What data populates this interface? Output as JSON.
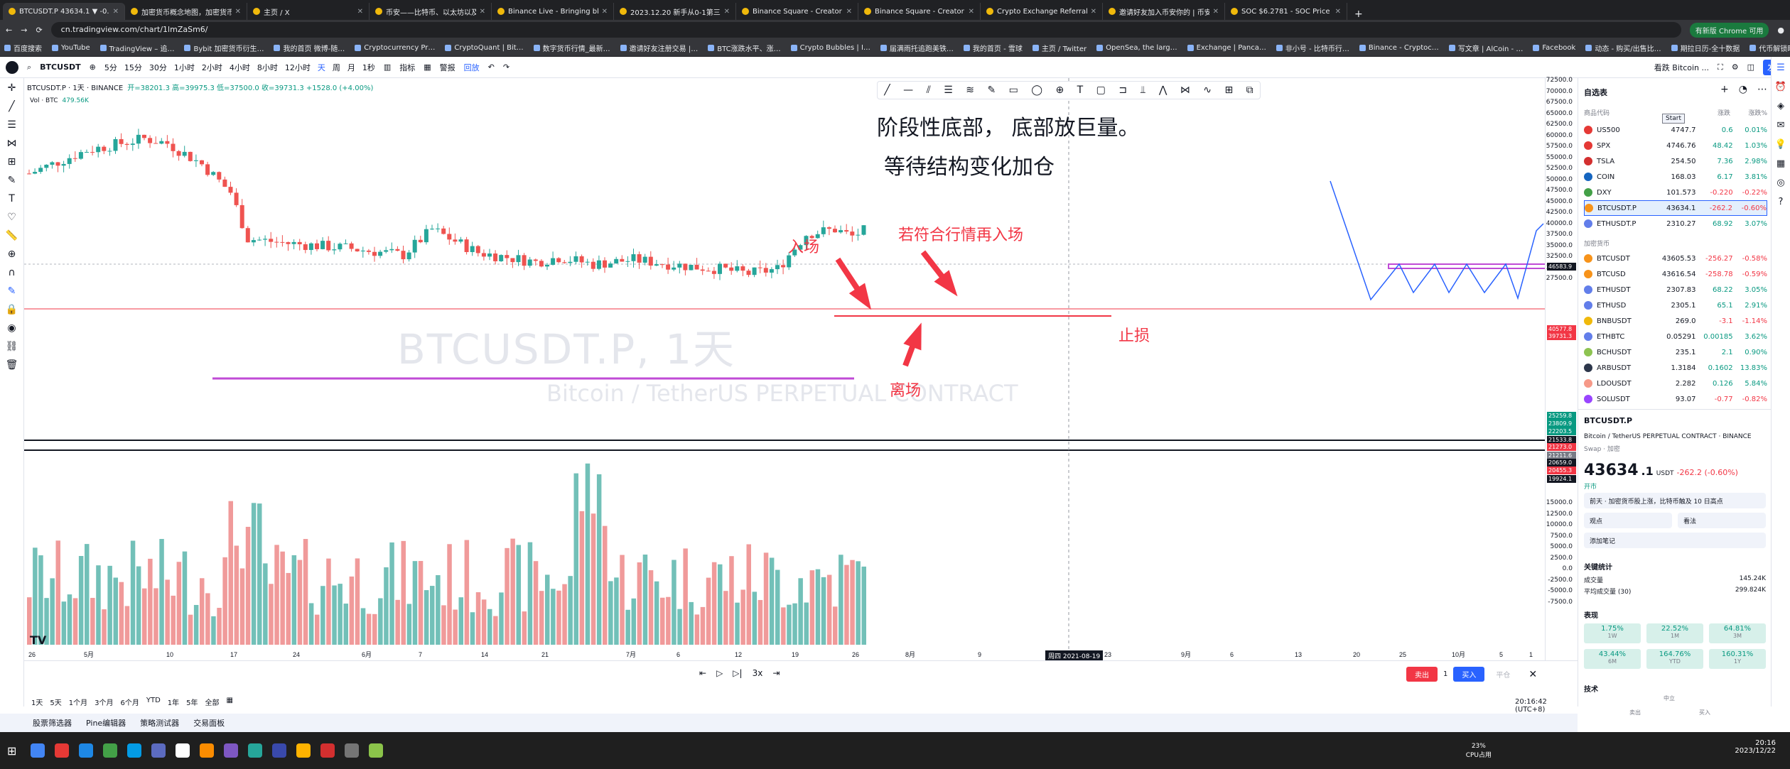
{
  "browser": {
    "tabs": [
      "BTCUSDT.P 43634.1 ▼ -0.6%",
      "加密货币概念地图，加密货币市场",
      "主页 / X",
      "币安——比特币、以太坊以及所",
      "Binance Live - Bringing blockc",
      "2023.12.20 新手从0-1第三课",
      "Binance Square - Creator Cen",
      "Binance Square - Creator Cen",
      "Crypto Exchange Referral Pro",
      "邀请好友加入币安你的 | 币安收",
      "SOC $6.2781 - SOC Price on"
    ],
    "url": "cn.tradingview.com/chart/1lmZaSm6/",
    "bookmarks": [
      "百度搜索",
      "YouTube",
      "TradingView – 追…",
      "Bybit 加密货币衍生…",
      "我的首页 微博-随…",
      "Cryptocurrency Pr…",
      "CryptoQuant | Bit…",
      "数字货币行情_最新…",
      "邀请好友注册交易 |…",
      "BTC涨跌水平、涨…",
      "Crypto Bubbles | I…",
      "届满雨托追跑美铁…",
      "我的首页 - 雪球",
      "主页 / Twitter",
      "OpenSea, the larg…",
      "Exchange | Panca…",
      "非小号 - 比特币行…",
      "Binance - Cryptoc…",
      "写文章 | AlCoin - …",
      "Facebook",
      "动态 - 购买/出售比…",
      "期拉日历-全十数据",
      "代币解锁时间期观"
    ],
    "bookmarks_more": "所有书签",
    "update_btn": "有新版 Chrome 可用"
  },
  "toolbar": {
    "symbol": "BTCUSDT",
    "intervals": [
      "5分",
      "15分",
      "30分",
      "1小时",
      "2小时",
      "4小时",
      "8小时",
      "12小时",
      "天",
      "周",
      "月",
      "1秒"
    ],
    "indicators": "指标",
    "alert": "警报",
    "replay": "回放",
    "layout_name": "看跌 Bitcoin ...",
    "layout_sub": "保存",
    "publish": "发布"
  },
  "chart": {
    "legend_title": "BTCUSDT.P · 1天 · BINANCE",
    "legend_ohlc": "开=38201.3 高=39975.3 低=37500.0 收=39731.3 +1528.0 (+4.00%)",
    "vol_label": "Vol · BTC",
    "vol_value": "479.56K",
    "watermark_symbol": "BTCUSDT.P, 1天",
    "watermark_desc": "Bitcoin / TetherUS PERPETUAL CONTRACT",
    "annotation_title": "阶段性底部，  底部放巨量。",
    "annotation_sub": "等待结构变化加仓",
    "label_entry": "入场",
    "label_reentry": "若符合行情再入场",
    "label_exit": "离场",
    "label_stop": "止损",
    "crosshair_date": "周四 2021-08-19",
    "x_ticks": [
      "26",
      "5月",
      "10",
      "17",
      "24",
      "6月",
      "7",
      "14",
      "21",
      "7月",
      "6",
      "12",
      "19",
      "26",
      "8月",
      "9",
      "23",
      "9月",
      "6",
      "13",
      "20",
      "25",
      "10月",
      "5",
      "1"
    ],
    "y_ticks": [
      "72500.0",
      "70000.0",
      "67500.0",
      "65000.0",
      "62500.0",
      "60000.0",
      "57500.0",
      "55000.0",
      "52500.0",
      "50000.0",
      "47500.0",
      "45000.0",
      "42500.0",
      "40000.0",
      "37500.0",
      "35000.0",
      "32500.0",
      "30000.0",
      "27500.0"
    ],
    "vol_ticks": [
      "15000.0",
      "12500.0",
      "10000.0",
      "7500.0",
      "5000.0",
      "2500.0",
      "0.0",
      "-2500.0",
      "-5000.0",
      "-7500.0"
    ],
    "price_tags": [
      {
        "text": "46583.9",
        "color": "#131722"
      },
      {
        "text": "40577.8",
        "color": "#f23645"
      },
      {
        "text": "39731.3",
        "color": "#f23645"
      },
      {
        "text": "25259.8",
        "color": "#089981"
      },
      {
        "text": "23809.9",
        "color": "#089981"
      },
      {
        "text": "22203.5",
        "color": "#089981"
      },
      {
        "text": "21533.8",
        "color": "#131722"
      },
      {
        "text": "21273.0",
        "color": "#f23645"
      },
      {
        "text": "21211.6",
        "color": "#787b86"
      },
      {
        "text": "20659.0",
        "color": "#131722"
      },
      {
        "text": "20455.3",
        "color": "#f23645"
      },
      {
        "text": "19924.1",
        "color": "#131722"
      }
    ],
    "symbol_tag": "BTCUSDT.P"
  },
  "bottom": {
    "ranges": [
      "1天",
      "5天",
      "1个月",
      "3个月",
      "6个月",
      "YTD",
      "1年",
      "5年",
      "全部"
    ],
    "replay_speed": "3x",
    "sell": "卖出",
    "qty": "1",
    "buy": "买入",
    "flat": "平仓",
    "clock": "20:16:42 (UTC+8)",
    "panels": [
      "股票筛选器",
      "Pine编辑器",
      "策略测试器",
      "交易面板"
    ]
  },
  "watchlist": {
    "title": "自选表",
    "cols": [
      "商品代码",
      "",
      "涨跌",
      "涨跌%"
    ],
    "tooltip": "Start",
    "rows": [
      {
        "sym": "US500",
        "last": "4747.7",
        "chg": "0.6",
        "pct": "0.01%",
        "dir": "pos",
        "color": "#e53935"
      },
      {
        "sym": "SPX",
        "last": "4746.76",
        "chg": "48.42",
        "pct": "1.03%",
        "dir": "pos",
        "color": "#e53935"
      },
      {
        "sym": "TSLA",
        "last": "254.50",
        "chg": "7.36",
        "pct": "2.98%",
        "dir": "pos",
        "color": "#d32f2f"
      },
      {
        "sym": "COIN",
        "last": "168.03",
        "chg": "6.17",
        "pct": "3.81%",
        "dir": "pos",
        "color": "#1565c0"
      },
      {
        "sym": "DXY",
        "last": "101.573",
        "chg": "-0.220",
        "pct": "-0.22%",
        "dir": "neg",
        "color": "#43a047"
      },
      {
        "sym": "BTCUSDT.P",
        "last": "43634.1",
        "chg": "-262.2",
        "pct": "-0.60%",
        "dir": "neg",
        "color": "#f7931a"
      },
      {
        "sym": "ETHUSDT.P",
        "last": "2310.27",
        "chg": "68.92",
        "pct": "3.07%",
        "dir": "pos",
        "color": "#627eea"
      }
    ],
    "section": "加密货币",
    "rows2": [
      {
        "sym": "BTCUSDT",
        "last": "43605.53",
        "chg": "-256.27",
        "pct": "-0.58%",
        "dir": "neg",
        "color": "#f7931a"
      },
      {
        "sym": "BTCUSD",
        "last": "43616.54",
        "chg": "-258.78",
        "pct": "-0.59%",
        "dir": "neg",
        "color": "#f7931a"
      },
      {
        "sym": "ETHUSDT",
        "last": "2307.83",
        "chg": "68.22",
        "pct": "3.05%",
        "dir": "pos",
        "color": "#627eea"
      },
      {
        "sym": "ETHUSD",
        "last": "2305.1",
        "chg": "65.1",
        "pct": "2.91%",
        "dir": "pos",
        "color": "#627eea"
      },
      {
        "sym": "BNBUSDT",
        "last": "269.0",
        "chg": "-3.1",
        "pct": "-1.14%",
        "dir": "neg",
        "color": "#f0b90b"
      },
      {
        "sym": "ETHBTC",
        "last": "0.05291",
        "chg": "0.00185",
        "pct": "3.62%",
        "dir": "pos",
        "color": "#627eea"
      },
      {
        "sym": "BCHUSDT",
        "last": "235.1",
        "chg": "2.1",
        "pct": "0.90%",
        "dir": "pos",
        "color": "#8dc351"
      },
      {
        "sym": "ARBUSDT",
        "last": "1.3184",
        "chg": "0.1602",
        "pct": "13.83%",
        "dir": "pos",
        "color": "#2d374b"
      },
      {
        "sym": "LDOUSDT",
        "last": "2.282",
        "chg": "0.126",
        "pct": "5.84%",
        "dir": "pos",
        "color": "#f69988"
      },
      {
        "sym": "SOLUSDT",
        "last": "93.07",
        "chg": "-0.77",
        "pct": "-0.82%",
        "dir": "neg",
        "color": "#9945ff"
      }
    ]
  },
  "details": {
    "symbol": "BTCUSDT.P",
    "desc": "Bitcoin / TetherUS PERPETUAL CONTRACT · BINANCE",
    "sub": "Swap · 加密",
    "price_big": "43634",
    "price_small": ".1",
    "currency": "USDT",
    "change": "-262.2 (-0.60%)",
    "market": "开市",
    "news": "前天 · 加密货币股上涨，比特币触及 10 日高点",
    "view": "观点",
    "view2": "看法",
    "notes": "添加笔记",
    "stats_title": "关键统计",
    "vol_label": "成交量",
    "vol_value": "145.24K",
    "avgvol_label": "平均成交量 (30)",
    "avgvol_value": "299.824K",
    "perf_title": "表现",
    "perf": [
      {
        "v": "1.75%",
        "p": "1W"
      },
      {
        "v": "22.52%",
        "p": "1M"
      },
      {
        "v": "64.81%",
        "p": "3M"
      },
      {
        "v": "43.44%",
        "p": "6M"
      },
      {
        "v": "164.76%",
        "p": "YTD"
      },
      {
        "v": "160.31%",
        "p": "1Y"
      }
    ],
    "tech_title": "技术",
    "gauge": [
      "中立",
      "卖出",
      "买入"
    ]
  },
  "taskbar": {
    "cpu": "23%",
    "cpu_label": "CPU占用",
    "time": "20:16",
    "date": "2023/12/22"
  },
  "chart_data": {
    "type": "candlestick",
    "candles_approx": "daily BTC price from late Apr 2021 to Aug 2021",
    "y_range": [
      27500,
      72500
    ],
    "close_last": 39731.3,
    "levels": {
      "resistance_red": 40577.8,
      "support_purple": 30000,
      "stop_line": 38900
    },
    "volume_range": [
      -7500,
      15000
    ]
  }
}
